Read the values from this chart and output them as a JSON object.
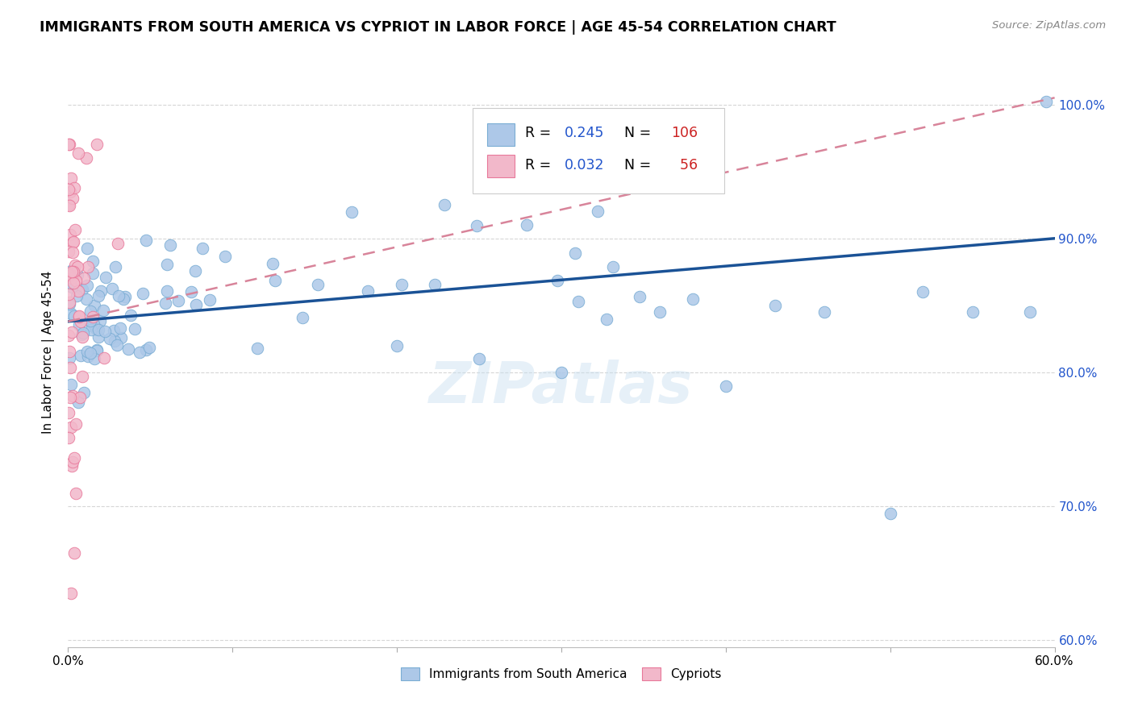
{
  "title": "IMMIGRANTS FROM SOUTH AMERICA VS CYPRIOT IN LABOR FORCE | AGE 45-54 CORRELATION CHART",
  "source": "Source: ZipAtlas.com",
  "ylabel": "In Labor Force | Age 45-54",
  "xlim": [
    0.0,
    0.6
  ],
  "ylim": [
    0.595,
    1.035
  ],
  "xticks": [
    0.0,
    0.1,
    0.2,
    0.3,
    0.4,
    0.5,
    0.6
  ],
  "xticklabels": [
    "0.0%",
    "",
    "",
    "",
    "",
    "",
    "60.0%"
  ],
  "yticks": [
    0.6,
    0.7,
    0.8,
    0.9,
    1.0
  ],
  "yticklabels": [
    "60.0%",
    "70.0%",
    "80.0%",
    "90.0%",
    "100.0%"
  ],
  "blue_R": 0.245,
  "blue_N": 106,
  "pink_R": 0.032,
  "pink_N": 56,
  "blue_color": "#adc8e8",
  "blue_edge": "#7aadd4",
  "pink_color": "#f2b8ca",
  "pink_edge": "#e8789a",
  "trendline_blue_color": "#1a5296",
  "trendline_pink_color": "#d8849a",
  "stat_color": "#2255cc",
  "watermark": "ZIPatlas",
  "legend_labels": [
    "Immigrants from South America",
    "Cypriots"
  ],
  "blue_trend_x0": 0.0,
  "blue_trend_y0": 0.838,
  "blue_trend_x1": 0.6,
  "blue_trend_y1": 0.9,
  "pink_trend_x0": 0.0,
  "pink_trend_y0": 0.838,
  "pink_trend_x1": 0.6,
  "pink_trend_y1": 1.005
}
